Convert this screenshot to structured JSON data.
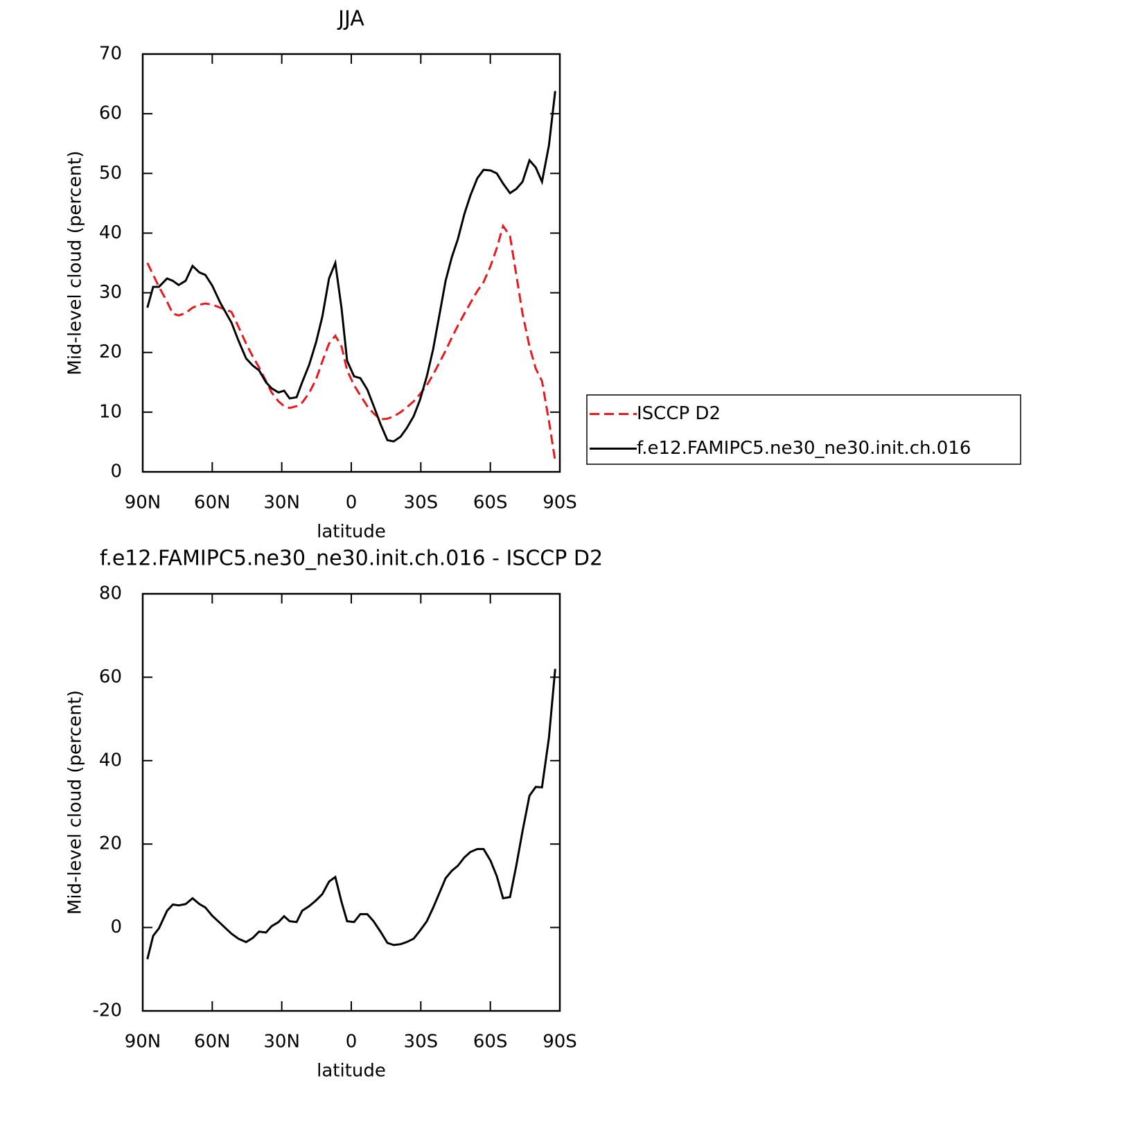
{
  "chart_data": [
    {
      "type": "line",
      "title": "JJA",
      "xlabel": "latitude",
      "ylabel": "Mid-level cloud (percent)",
      "x": [
        88,
        85.5,
        83,
        79.5,
        77,
        74.5,
        71.5,
        68.5,
        65.5,
        63,
        60,
        56.5,
        51.7,
        48.7,
        45.4,
        42.5,
        39.8,
        36.8,
        34.4,
        31.4,
        29,
        26.6,
        23.6,
        21.2,
        18.2,
        15.2,
        12.5,
        9.6,
        6.9,
        4.2,
        1.8,
        -1.2,
        -3.9,
        -6.9,
        -9.6,
        -12.6,
        -15.6,
        -18.3,
        -21.3,
        -23.9,
        -26.9,
        -29.6,
        -32.6,
        -35.3,
        -37.9,
        -40.7,
        -43.4,
        -46,
        -48.8,
        -51.4,
        -54.4,
        -57.1,
        -60.1,
        -62.8,
        -65.5,
        -68.5,
        -71.2,
        -73.9,
        -76.9,
        -79.6,
        -82.3,
        -85.3,
        -88
      ],
      "series": [
        {
          "name": "ISCCP D2",
          "color": "#e8191c",
          "dashed": true,
          "values": [
            35,
            33,
            31,
            28.5,
            26.5,
            26.2,
            26.6,
            27.5,
            28,
            28.2,
            28,
            27.5,
            26.8,
            24.3,
            21.5,
            19.3,
            17.5,
            15.2,
            13.3,
            11.8,
            11,
            10.7,
            11,
            11.6,
            13.2,
            15.5,
            18.5,
            21.5,
            22.8,
            21,
            17,
            14.5,
            12.8,
            11,
            9.8,
            8.8,
            8.9,
            9.3,
            10,
            10.8,
            11.8,
            13,
            14.5,
            16.3,
            18.2,
            20.3,
            22.5,
            24.5,
            26.5,
            28.3,
            30.3,
            31.8,
            34.5,
            37.5,
            41.2,
            39.5,
            33,
            26.5,
            21,
            17.3,
            15.2,
            8.5,
            1.8
          ]
        },
        {
          "name": "f.e12.FAMIPC5.ne30_ne30.init.ch.016",
          "color": "#000000",
          "dashed": false,
          "values": [
            27.5,
            31,
            31,
            32.4,
            32,
            31.3,
            32,
            34.5,
            33.4,
            33,
            31.2,
            28.3,
            25,
            22,
            19,
            17.8,
            17,
            15,
            14,
            13.3,
            13.6,
            12.3,
            12.5,
            15,
            17.9,
            21.7,
            26,
            32.4,
            35,
            27.4,
            18.6,
            16,
            15.7,
            13.8,
            11.1,
            8,
            5.3,
            5.1,
            5.9,
            7.3,
            9.3,
            12,
            16,
            20.5,
            26,
            32,
            36,
            39,
            43.2,
            46.3,
            49.2,
            50.6,
            50.5,
            50,
            48.3,
            46.7,
            47.4,
            48.6,
            52.2,
            51,
            48.6,
            54.7,
            63.8
          ]
        }
      ],
      "xlim": [
        90,
        -90
      ],
      "xticks": [
        {
          "value": 90,
          "label": "90N"
        },
        {
          "value": 60,
          "label": "60N"
        },
        {
          "value": 30,
          "label": "30N"
        },
        0,
        {
          "value": -30,
          "label": "30S"
        },
        {
          "value": -60,
          "label": "60S"
        },
        {
          "value": -90,
          "label": "90S"
        }
      ],
      "ylim": [
        0,
        70
      ],
      "yticks": [
        0,
        10,
        20,
        30,
        40,
        50,
        60,
        70
      ],
      "legend": "right"
    },
    {
      "type": "line",
      "title": "f.e12.FAMIPC5.ne30_ne30.init.ch.016 - ISCCP D2",
      "xlabel": "latitude",
      "ylabel": "Mid-level cloud (percent)",
      "x": [
        88,
        85.5,
        83,
        79.5,
        77,
        74.5,
        71.5,
        68.5,
        65.5,
        63,
        60,
        56.5,
        51.7,
        48.7,
        45.4,
        42.5,
        39.8,
        36.8,
        34.4,
        31.4,
        29,
        26.6,
        23.6,
        21.2,
        18.2,
        15.2,
        12.5,
        9.6,
        6.9,
        4.2,
        1.8,
        -1.2,
        -3.9,
        -6.9,
        -9.6,
        -12.6,
        -15.6,
        -18.3,
        -21.3,
        -23.9,
        -26.9,
        -29.6,
        -32.6,
        -35.3,
        -37.9,
        -40.7,
        -43.4,
        -46,
        -48.8,
        -51.4,
        -54.4,
        -57.1,
        -60.1,
        -62.8,
        -65.5,
        -68.5,
        -71.2,
        -73.9,
        -76.9,
        -79.6,
        -82.3,
        -85.3,
        -88
      ],
      "values": [
        -7.6,
        -2,
        -0.2,
        4,
        5.5,
        5.3,
        5.6,
        7,
        5.6,
        4.8,
        2.8,
        1,
        -1.5,
        -2.7,
        -3.5,
        -2.5,
        -1,
        -1.2,
        0.3,
        1.3,
        2.7,
        1.5,
        1.3,
        4,
        5.1,
        6.5,
        8,
        11,
        12.1,
        6.1,
        1.5,
        1.3,
        3.2,
        3.2,
        1.5,
        -1,
        -3.7,
        -4.2,
        -4,
        -3.5,
        -2.7,
        -0.8,
        1.5,
        4.7,
        8.1,
        11.8,
        13.6,
        14.8,
        16.8,
        18.1,
        18.8,
        18.8,
        16,
        12.3,
        7,
        7.3,
        14.8,
        23.1,
        31.6,
        33.7,
        33.6,
        45.5,
        62
      ],
      "color": "#000000",
      "xlim": [
        90,
        -90
      ],
      "xticks": [
        {
          "value": 90,
          "label": "90N"
        },
        {
          "value": 60,
          "label": "60N"
        },
        {
          "value": 30,
          "label": "30N"
        },
        0,
        {
          "value": -30,
          "label": "30S"
        },
        {
          "value": -60,
          "label": "60S"
        },
        {
          "value": -90,
          "label": "90S"
        }
      ],
      "ylim": [
        -20,
        80
      ],
      "yticks": [
        -20,
        0,
        20,
        40,
        60,
        80
      ]
    }
  ]
}
